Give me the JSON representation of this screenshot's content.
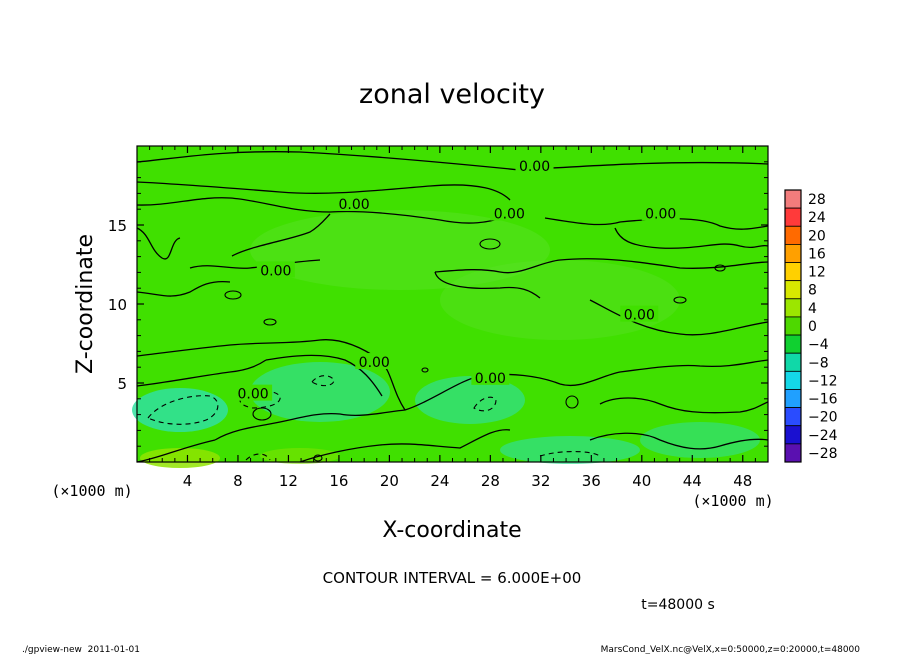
{
  "chart_data": {
    "type": "heatmap",
    "title": "zonal velocity",
    "xlabel": "X-coordinate",
    "ylabel": "Z-coordinate",
    "x_unit_left": "(×1000 m)",
    "x_unit_right": "(×1000 m)",
    "xlim": [
      0,
      50
    ],
    "ylim": [
      0,
      20
    ],
    "xticks": [
      "4",
      "8",
      "12",
      "16",
      "20",
      "24",
      "28",
      "32",
      "36",
      "40",
      "44",
      "48"
    ],
    "xtick_values": [
      4,
      8,
      12,
      16,
      20,
      24,
      28,
      32,
      36,
      40,
      44,
      48
    ],
    "yticks": [
      "5",
      "10",
      "15"
    ],
    "ytick_values": [
      5,
      10,
      15
    ],
    "contour_labels": [
      {
        "text": "0.00",
        "x": 31.5,
        "z": 18.6
      },
      {
        "text": "0.00",
        "x": 17.2,
        "z": 16.2
      },
      {
        "text": "0.00",
        "x": 29.5,
        "z": 15.6
      },
      {
        "text": "0.00",
        "x": 41.5,
        "z": 15.6
      },
      {
        "text": "0.00",
        "x": 11.0,
        "z": 12.0
      },
      {
        "text": "0.00",
        "x": 39.8,
        "z": 9.2
      },
      {
        "text": "0.00",
        "x": 18.8,
        "z": 6.2
      },
      {
        "text": "0.00",
        "x": 28.0,
        "z": 5.2
      },
      {
        "text": "0.00",
        "x": 9.2,
        "z": 4.2
      }
    ],
    "colorbar": {
      "labels": [
        "28",
        "24",
        "20",
        "16",
        "12",
        "8",
        "4",
        "0",
        "−4",
        "−8",
        "−12",
        "−16",
        "−20",
        "−24",
        "−28"
      ],
      "colors": [
        "#f27c7c",
        "#ff3a3a",
        "#ff6a00",
        "#ffa000",
        "#ffd000",
        "#d8e800",
        "#9ce600",
        "#4ed800",
        "#10d030",
        "#10d8a8",
        "#14d8e8",
        "#20a0ff",
        "#2a4cff",
        "#1a10d0",
        "#5a10b0"
      ]
    },
    "contour_interval_text": "CONTOUR INTERVAL = 6.000E+00",
    "time_text": "t=48000 s",
    "footer_left": "./gpview-new  2011-01-01",
    "footer_right": "MarsCond_VelX.nc@VelX,x=0:50000,z=0:20000,t=48000",
    "colors": {
      "field_base": "#40e000",
      "field_low": "#30e08a",
      "field_high": "#88e400",
      "contour": "#000000"
    }
  }
}
